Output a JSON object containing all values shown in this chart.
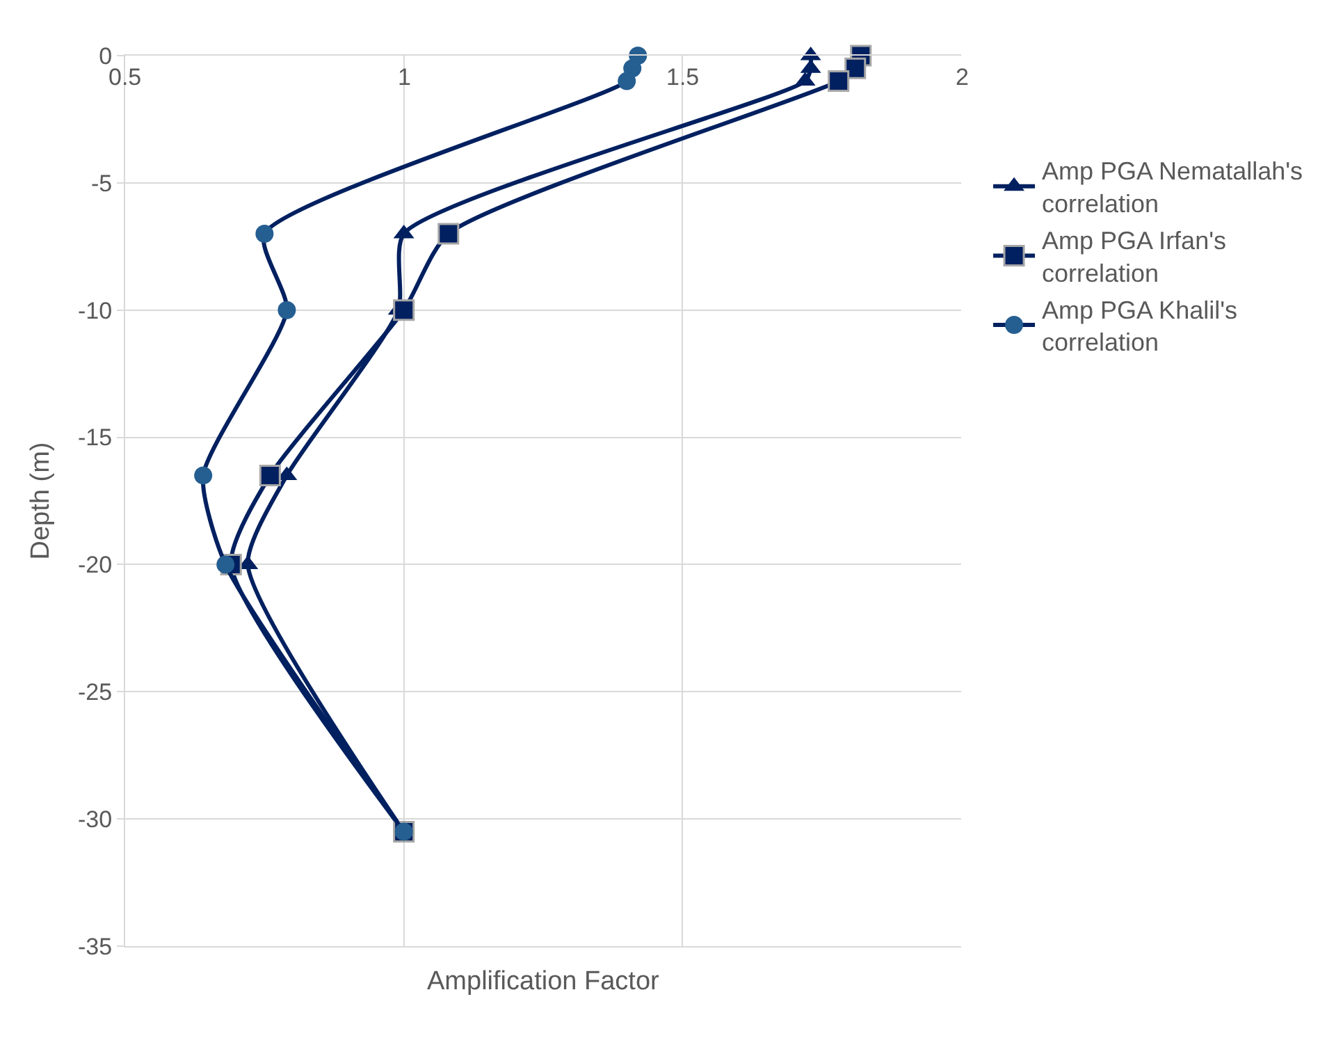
{
  "chart_data": {
    "type": "line",
    "xlabel": "Amplification Factor",
    "ylabel": "Depth (m)",
    "xlim": [
      0.5,
      2
    ],
    "xticks": [
      0.5,
      1,
      1.5,
      2
    ],
    "ylim": [
      -35,
      0
    ],
    "yticks": [
      -35,
      -30,
      -25,
      -20,
      -15,
      -10,
      -5,
      0
    ],
    "grid": true,
    "legend": "right",
    "series": [
      {
        "name": "Amp PGA Nematallah's correlation",
        "color": "#002060",
        "marker": "triangle",
        "x": [
          1.73,
          1.73,
          1.72,
          1.0,
          0.99,
          0.79,
          0.72,
          1.0
        ],
        "values": [
          0,
          -0.5,
          -1,
          -7,
          -10,
          -16.5,
          -20,
          -30.5
        ]
      },
      {
        "name": "Amp PGA Irfan's correlation",
        "color": "#002060",
        "marker": "square",
        "x": [
          1.82,
          1.81,
          1.78,
          1.08,
          1.0,
          0.76,
          0.69,
          1.0
        ],
        "values": [
          0,
          -0.5,
          -1,
          -7,
          -10,
          -16.5,
          -20,
          -30.5
        ]
      },
      {
        "name": "Amp PGA Khalil's correlation",
        "color": "#255e91",
        "marker": "circle",
        "x": [
          1.42,
          1.41,
          1.4,
          0.75,
          0.79,
          0.64,
          0.68,
          1.0
        ],
        "values": [
          0,
          -0.5,
          -1,
          -7,
          -10,
          -16.5,
          -20,
          -30.5
        ]
      }
    ]
  }
}
